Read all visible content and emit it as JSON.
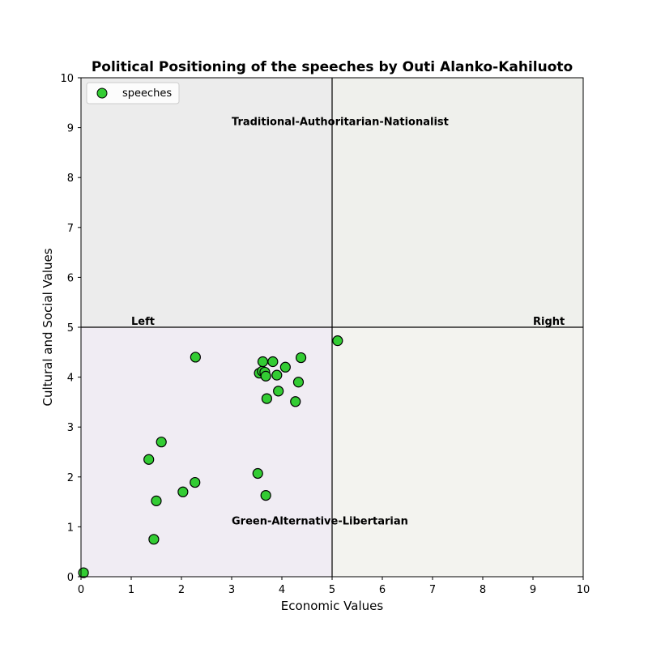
{
  "chart_data": {
    "type": "scatter",
    "title": "Political Positioning of the speeches by Outi Alanko-Kahiluoto",
    "xlabel": "Economic Values",
    "ylabel": "Cultural and Social Values",
    "xlim": [
      0,
      10
    ],
    "ylim": [
      0,
      10
    ],
    "xticks": [
      "0",
      "1",
      "2",
      "3",
      "4",
      "5",
      "6",
      "7",
      "8",
      "9",
      "10"
    ],
    "yticks": [
      "0",
      "1",
      "2",
      "3",
      "4",
      "5",
      "6",
      "7",
      "8",
      "9",
      "10"
    ],
    "grid": false,
    "legend_position": "top-left",
    "divider_x": 5,
    "divider_y": 5,
    "quadrant_colors": {
      "top_left": "#ececec",
      "top_right": "#eff0ec",
      "bottom_left": "#f0ecf3",
      "bottom_right": "#f3f3ef"
    },
    "annotations": [
      {
        "text": "Traditional-Authoritarian-Nationalist",
        "x": 3.0,
        "y": 9.05
      },
      {
        "text": "Green-Alternative-Libertarian",
        "x": 3.0,
        "y": 1.05
      },
      {
        "text": "Left",
        "x": 1.0,
        "y": 5.05
      },
      {
        "text": "Right",
        "x": 9.0,
        "y": 5.05
      }
    ],
    "series": [
      {
        "name": "speeches",
        "color": "#33cc33",
        "edge_color": "#000000",
        "points": [
          [
            0.05,
            0.08
          ],
          [
            1.45,
            0.75
          ],
          [
            1.5,
            1.52
          ],
          [
            1.35,
            2.35
          ],
          [
            1.6,
            2.7
          ],
          [
            2.03,
            1.7
          ],
          [
            2.27,
            1.89
          ],
          [
            2.28,
            4.4
          ],
          [
            3.52,
            2.07
          ],
          [
            3.68,
            1.63
          ],
          [
            3.55,
            4.08
          ],
          [
            3.61,
            4.12
          ],
          [
            3.62,
            4.31
          ],
          [
            3.66,
            4.1
          ],
          [
            3.68,
            4.02
          ],
          [
            3.7,
            3.57
          ],
          [
            3.82,
            4.31
          ],
          [
            3.9,
            4.04
          ],
          [
            3.93,
            3.72
          ],
          [
            4.07,
            4.2
          ],
          [
            4.27,
            3.51
          ],
          [
            4.33,
            3.9
          ],
          [
            4.38,
            4.39
          ],
          [
            5.11,
            4.73
          ]
        ]
      }
    ]
  }
}
